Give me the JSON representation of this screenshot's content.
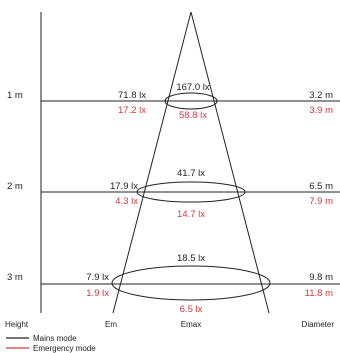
{
  "colors": {
    "mains": "#222222",
    "emergency": "#d03a40"
  },
  "rows": [
    {
      "height": "1 m",
      "em_mains": "71.8 lx",
      "em_emergency": "17.2 lx",
      "emax_mains": "167.0 lx",
      "emax_emergency": "58.8 lx",
      "diameter_mains": "3.2 m",
      "diameter_emergency": "3.9 m"
    },
    {
      "height": "2 m",
      "em_mains": "17.9 lx",
      "em_emergency": "4.3 lx",
      "emax_mains": "41.7 lx",
      "emax_emergency": "14.7 lx",
      "diameter_mains": "6.5 m",
      "diameter_emergency": "7.9 m"
    },
    {
      "height": "3 m",
      "em_mains": "7.9 lx",
      "em_emergency": "1.9 lx",
      "emax_mains": "18.5 lx",
      "emax_emergency": "6.5 lx",
      "diameter_mains": "9.8 m",
      "diameter_emergency": "11.8 m"
    }
  ],
  "axis_labels": {
    "height": "Height",
    "em": "Em",
    "emax": "Emax",
    "diameter": "Diameter"
  },
  "legend": {
    "mains": "Mains mode",
    "emergency": "Emergency mode"
  }
}
